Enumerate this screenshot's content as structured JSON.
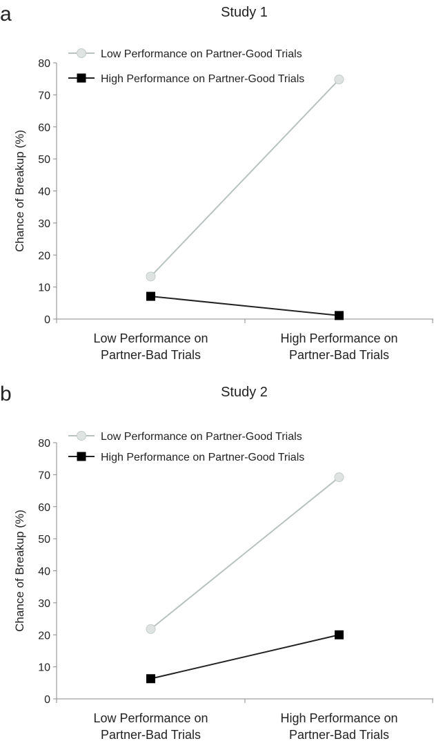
{
  "chart_data": [
    {
      "panel": "a",
      "type": "line",
      "title": "Study 1",
      "ylabel": "Chance of Breakup (%)",
      "xlabel": "",
      "ylim": [
        0,
        80
      ],
      "yticks": [
        0,
        10,
        20,
        30,
        40,
        50,
        60,
        70,
        80
      ],
      "categories": [
        [
          "Low Performance on",
          "Partner-Bad Trials"
        ],
        [
          "High Performance on",
          "Partner-Bad Trials"
        ]
      ],
      "legend_position": "top-left",
      "grid": false,
      "series": [
        {
          "name": "Low Performance on Partner-Good Trials",
          "values": [
            13.3,
            74.8
          ],
          "marker": "circle",
          "color": "#b9c1c0",
          "fill": "#dfe4e3"
        },
        {
          "name": "High Performance on Partner-Good Trials",
          "values": [
            7.1,
            1.1
          ],
          "marker": "square",
          "color": "#222222",
          "fill": "#000000"
        }
      ]
    },
    {
      "panel": "b",
      "type": "line",
      "title": "Study 2",
      "ylabel": "Chance of Breakup (%)",
      "xlabel": "",
      "ylim": [
        0,
        80
      ],
      "yticks": [
        0,
        10,
        20,
        30,
        40,
        50,
        60,
        70,
        80
      ],
      "categories": [
        [
          "Low Performance on",
          "Partner-Bad Trials"
        ],
        [
          "High Performance on",
          "Partner-Bad Trials"
        ]
      ],
      "legend_position": "top-left",
      "grid": false,
      "series": [
        {
          "name": "Low Performance on Partner-Good Trials",
          "values": [
            21.8,
            69.2
          ],
          "marker": "circle",
          "color": "#b9c1c0",
          "fill": "#dfe4e3"
        },
        {
          "name": "High Performance on Partner-Good Trials",
          "values": [
            6.3,
            20.0
          ],
          "marker": "square",
          "color": "#222222",
          "fill": "#000000"
        }
      ]
    }
  ]
}
